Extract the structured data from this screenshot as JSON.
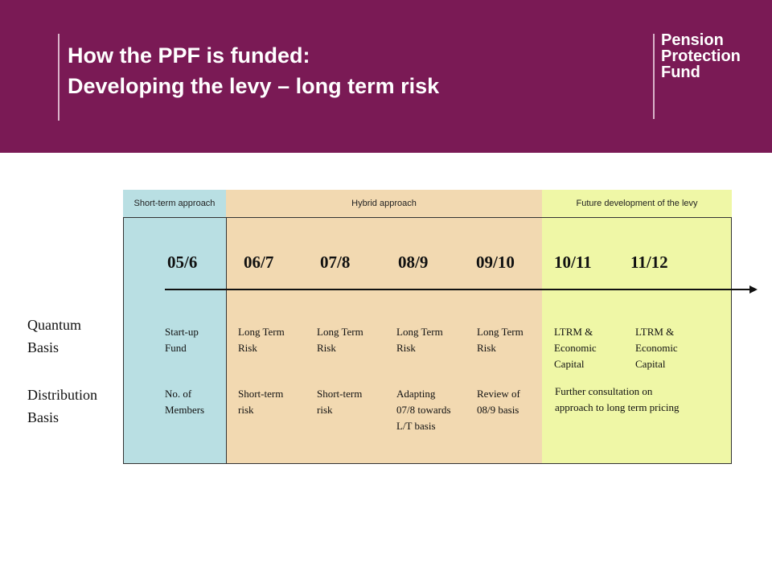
{
  "header": {
    "title_line1": "How the PPF is funded:",
    "title_line2": "Developing the levy – long term risk",
    "logo": [
      "Pension",
      "Protection",
      "Fund"
    ]
  },
  "phases": {
    "short_term": "Short-term approach",
    "hybrid": "Hybrid approach",
    "future": "Future development of the levy"
  },
  "colors": {
    "header_bg": "#7a1a55",
    "short_term": "#b9dfe3",
    "hybrid": "#f2d9b1",
    "future": "#eff7a6"
  },
  "years": [
    "05/6",
    "06/7",
    "07/8",
    "08/9",
    "09/10",
    "10/11",
    "11/12"
  ],
  "rows": {
    "quantum_label": [
      "Quantum",
      "Basis"
    ],
    "distribution_label": [
      "Distribution",
      "Basis"
    ]
  },
  "quantum": [
    [
      "Start-up",
      "Fund"
    ],
    [
      "Long Term",
      "Risk"
    ],
    [
      "Long Term",
      "Risk"
    ],
    [
      "Long Term",
      "Risk"
    ],
    [
      "Long Term",
      "Risk"
    ],
    [
      "LTRM &",
      "Economic",
      "Capital"
    ],
    [
      "LTRM &",
      "Economic",
      "Capital"
    ]
  ],
  "distribution": [
    [
      "No. of",
      "Members"
    ],
    [
      "Short-term",
      "risk"
    ],
    [
      "Short-term",
      "risk"
    ],
    [
      "Adapting",
      "07/8 towards",
      "L/T basis"
    ],
    [
      "Review of",
      "08/9 basis"
    ],
    [
      "Further consultation on",
      "approach to long term pricing"
    ]
  ]
}
